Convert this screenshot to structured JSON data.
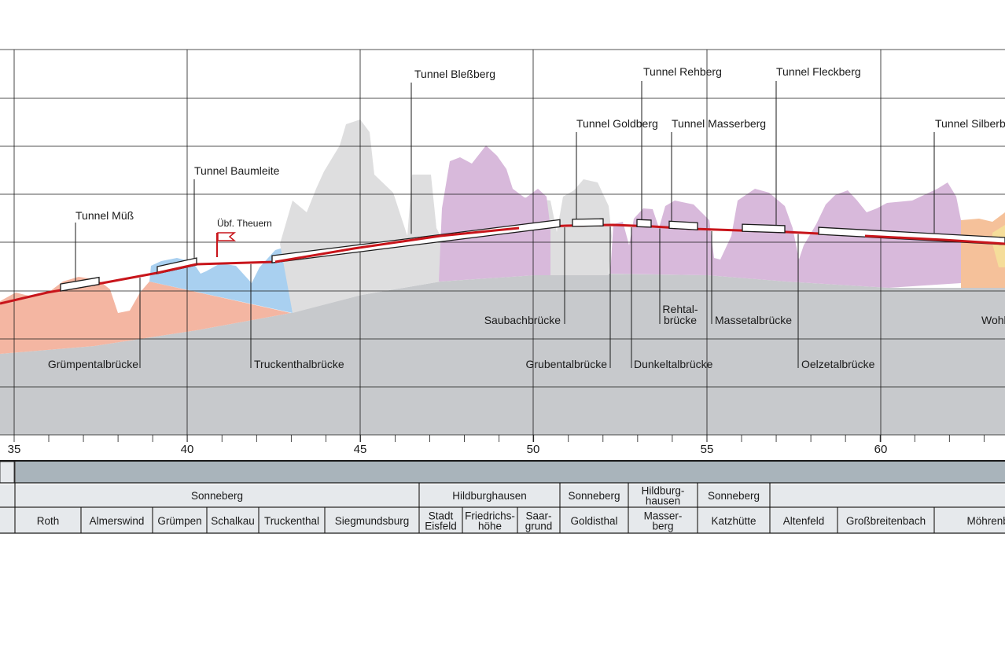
{
  "km_axis": {
    "labels": [
      "35",
      "40",
      "45",
      "50",
      "55",
      "60"
    ]
  },
  "tunnels": [
    {
      "name": "Tunnel Müß"
    },
    {
      "name": "Tunnel Baumleite"
    },
    {
      "name": "Tunnel Bleßberg"
    },
    {
      "name": "Tunnel Goldberg"
    },
    {
      "name": "Tunnel Rehberg"
    },
    {
      "name": "Tunnel Masserberg"
    },
    {
      "name": "Tunnel Fleckberg"
    },
    {
      "name": "Tunnel Silberberg"
    }
  ],
  "station": {
    "name": "Übf. Theuern"
  },
  "bridges": [
    {
      "lines": [
        "Grümpentalbrücke"
      ]
    },
    {
      "lines": [
        "Truckenthalbrücke"
      ]
    },
    {
      "lines": [
        "Saubachbrücke"
      ]
    },
    {
      "lines": [
        "Grubentalbrücke"
      ]
    },
    {
      "lines": [
        "Dunkeltalbrücke"
      ]
    },
    {
      "lines": [
        "Rehtal-",
        "brücke"
      ]
    },
    {
      "lines": [
        "Massetalbrücke"
      ]
    },
    {
      "lines": [
        "Oelzetalbrücke"
      ]
    },
    {
      "lines": [
        "Wohlrosetalbrücke"
      ]
    }
  ],
  "districts": [
    {
      "lines": [
        "Sonneberg"
      ]
    },
    {
      "lines": [
        "Hildburghausen"
      ]
    },
    {
      "lines": [
        "Sonneberg"
      ]
    },
    {
      "lines": [
        "Hildburg-",
        "hausen"
      ]
    },
    {
      "lines": [
        "Sonneberg"
      ]
    }
  ],
  "municipalities": [
    {
      "lines": [
        "Roth"
      ]
    },
    {
      "lines": [
        "Almerswind"
      ]
    },
    {
      "lines": [
        "Grümpen"
      ]
    },
    {
      "lines": [
        "Schalkau"
      ]
    },
    {
      "lines": [
        "Truckenthal"
      ]
    },
    {
      "lines": [
        "Siegmundsburg"
      ]
    },
    {
      "lines": [
        "Stadt",
        "Eisfeld"
      ]
    },
    {
      "lines": [
        "Friedrichs-",
        "höhe"
      ]
    },
    {
      "lines": [
        "Saar-",
        "grund"
      ]
    },
    {
      "lines": [
        "Goldisthal"
      ]
    },
    {
      "lines": [
        "Masser-",
        "berg"
      ]
    },
    {
      "lines": [
        "Katzhütte"
      ]
    },
    {
      "lines": [
        "Altenfeld"
      ]
    },
    {
      "lines": [
        "Großbreitenbach"
      ]
    },
    {
      "lines": [
        "Möhrenbach"
      ]
    }
  ],
  "colors": {
    "base": "#c7c9cc",
    "salmon": "#f4b6a2",
    "blue": "#a9d0f0",
    "lightgray": "#dededf",
    "purple": "#d8b9db",
    "orange": "#f5c19a",
    "yellow": "#f5dd9a",
    "track": "#c8151b",
    "band": "#a9b4bb",
    "cell": "#e6e9ec",
    "grid": "#1a1a1a"
  }
}
